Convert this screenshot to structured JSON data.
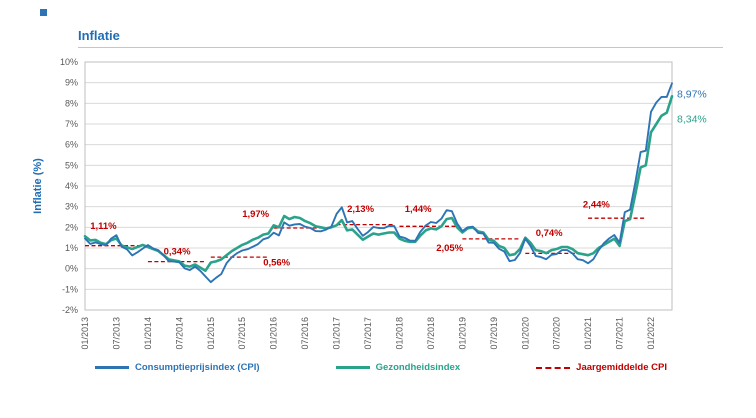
{
  "chart_data": {
    "type": "line",
    "title": "Inflatie",
    "ylabel": "Inflatie (%)",
    "ylim": [
      -2,
      10
    ],
    "grid": "horizontal",
    "legend_position": "bottom",
    "y_ticks": [
      "10%",
      "9%",
      "8%",
      "7%",
      "6%",
      "5%",
      "4%",
      "3%",
      "2%",
      "1%",
      "0%",
      "-1%",
      "-2%"
    ],
    "x_ticks": [
      "01/2013",
      "07/2013",
      "01/2014",
      "07/2014",
      "01/2015",
      "07/2015",
      "01/2016",
      "07/2016",
      "01/2017",
      "07/2017",
      "01/2018",
      "07/2018",
      "01/2019",
      "07/2019",
      "01/2020",
      "07/2020",
      "01/2021",
      "07/2021",
      "01/2022"
    ],
    "x_tick_step_months": 6,
    "months_start": "01/2013",
    "months_end": "05/2022",
    "series": [
      {
        "name": "Consumptieprijsindex (CPI)",
        "color": "#2e74b5",
        "values": [
          1.46,
          1.2,
          1.27,
          1.19,
          1.13,
          1.46,
          1.62,
          1.06,
          0.94,
          0.64,
          0.79,
          0.97,
          1.14,
          0.98,
          0.89,
          0.64,
          0.36,
          0.34,
          0.31,
          0.02,
          -0.07,
          0.1,
          -0.11,
          -0.38,
          -0.65,
          -0.44,
          -0.26,
          0.26,
          0.56,
          0.75,
          0.88,
          0.94,
          1.06,
          1.19,
          1.42,
          1.5,
          1.74,
          1.61,
          2.24,
          2.08,
          2.14,
          2.16,
          2.03,
          1.97,
          1.82,
          1.81,
          1.89,
          2.03,
          2.65,
          2.97,
          2.24,
          2.3,
          1.93,
          1.59,
          1.77,
          2.02,
          1.97,
          1.96,
          2.07,
          2.06,
          1.55,
          1.49,
          1.36,
          1.35,
          1.79,
          2.09,
          2.26,
          2.21,
          2.42,
          2.83,
          2.78,
          2.19,
          1.82,
          2.0,
          2.03,
          1.73,
          1.7,
          1.26,
          1.25,
          0.96,
          0.83,
          0.36,
          0.42,
          0.76,
          1.45,
          1.1,
          0.62,
          0.56,
          0.46,
          0.67,
          0.71,
          0.9,
          0.9,
          0.74,
          0.46,
          0.41,
          0.26,
          0.46,
          0.89,
          1.23,
          1.46,
          1.63,
          1.25,
          2.73,
          2.86,
          4.16,
          5.64,
          5.71,
          7.59,
          8.04,
          8.31,
          8.31,
          8.97
        ]
      },
      {
        "name": "Gezondheidsindex",
        "color": "#2aa38a",
        "values": [
          1.57,
          1.37,
          1.39,
          1.25,
          1.19,
          1.38,
          1.46,
          1.12,
          1.03,
          0.95,
          1.05,
          1.15,
          1.05,
          0.95,
          0.85,
          0.65,
          0.45,
          0.4,
          0.35,
          0.15,
          0.1,
          0.2,
          0.05,
          -0.1,
          0.3,
          0.35,
          0.45,
          0.65,
          0.85,
          1.0,
          1.15,
          1.25,
          1.4,
          1.5,
          1.65,
          1.7,
          2.1,
          2.0,
          2.55,
          2.4,
          2.5,
          2.45,
          2.3,
          2.2,
          2.05,
          2.0,
          1.95,
          2.0,
          2.1,
          2.35,
          1.85,
          1.9,
          1.65,
          1.4,
          1.55,
          1.7,
          1.65,
          1.7,
          1.75,
          1.75,
          1.45,
          1.35,
          1.3,
          1.3,
          1.6,
          1.85,
          1.95,
          1.9,
          2.05,
          2.4,
          2.45,
          2.0,
          1.75,
          1.95,
          2.0,
          1.8,
          1.75,
          1.4,
          1.35,
          1.1,
          1.0,
          0.65,
          0.7,
          0.95,
          1.5,
          1.25,
          0.9,
          0.85,
          0.75,
          0.9,
          0.95,
          1.05,
          1.05,
          0.95,
          0.75,
          0.7,
          0.65,
          0.75,
          1.0,
          1.15,
          1.3,
          1.45,
          1.1,
          2.3,
          2.4,
          3.6,
          4.9,
          5.0,
          6.6,
          7.0,
          7.4,
          7.55,
          8.34
        ]
      }
    ],
    "annual_average": {
      "name": "Jaargemiddelde CPI",
      "color": "#c00000",
      "values": [
        {
          "year": 2013,
          "value": 1.11,
          "label": "1,11%",
          "label_month": 1,
          "label_y": 1.92
        },
        {
          "year": 2014,
          "value": 0.34,
          "label": "0,34%",
          "label_month": 15,
          "label_y": 0.68
        },
        {
          "year": 2015,
          "value": 0.56,
          "label": "0,56%",
          "label_month": 34,
          "label_y": 0.15
        },
        {
          "year": 2016,
          "value": 1.97,
          "label": "1,97%",
          "label_month": 30,
          "label_y": 2.5
        },
        {
          "year": 2017,
          "value": 2.13,
          "label": "2,13%",
          "label_month": 50,
          "label_y": 2.75
        },
        {
          "year": 2018,
          "value": 2.05,
          "label": "2,05%",
          "label_month": 67,
          "label_y": 0.86
        },
        {
          "year": 2019,
          "value": 1.44,
          "label": "1,44%",
          "label_month": 61,
          "label_y": 2.75
        },
        {
          "year": 2020,
          "value": 0.74,
          "label": "0,74%",
          "label_month": 86,
          "label_y": 1.58
        },
        {
          "year": 2021,
          "value": 2.44,
          "label": "2,44%",
          "label_month": 95,
          "label_y": 2.95
        }
      ]
    },
    "end_labels": [
      {
        "text": "8,97%",
        "series": 0,
        "value": 8.97,
        "dy": 14
      },
      {
        "text": "8,34%",
        "series": 1,
        "value": 8.34,
        "dy": 26
      }
    ]
  }
}
